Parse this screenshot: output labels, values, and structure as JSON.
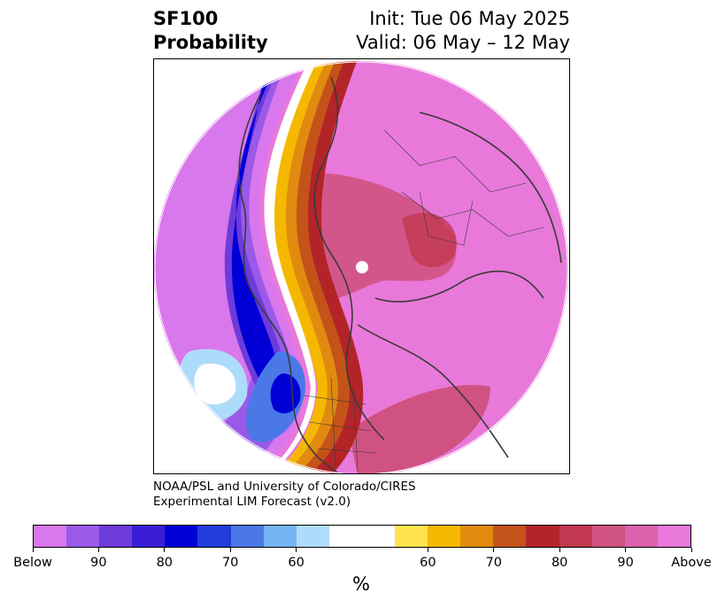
{
  "header": {
    "variable": "SF100",
    "product": "Probability",
    "init": "Init: Tue 06 May 2025",
    "valid": "Valid: 06 May – 12 May"
  },
  "credit": {
    "line1": "NOAA/PSL and University of Colorado/CIRES",
    "line2": "Experimental LIM Forecast (v2.0)"
  },
  "colorbar": {
    "colors": [
      "#d977ec",
      "#9b59e8",
      "#6d3bdb",
      "#3a1ed6",
      "#0000d6",
      "#213ddb",
      "#4b78e7",
      "#75b3f2",
      "#addcfb",
      "#ffffff",
      "#ffffff",
      "#ffe34d",
      "#f5b800",
      "#e08b10",
      "#c4531a",
      "#b32428",
      "#c23850",
      "#d05282",
      "#dc62ad",
      "#e879da"
    ],
    "labels": [
      "Below",
      "90",
      "80",
      "70",
      "60",
      "60",
      "70",
      "80",
      "90",
      "Above"
    ],
    "unit": "%"
  },
  "map": {
    "projection": "north polar stereographic",
    "field": "probability of above/below normal",
    "colors": {
      "above_high": "#e879da",
      "above_mid": "#d05282",
      "above_core": "#dc62ad",
      "below_high": "#d977ec",
      "below_mid": "#9b59e8",
      "below_core": "#0000d6",
      "neutral": "#ffffff",
      "coast": "#3a3a3a"
    }
  }
}
